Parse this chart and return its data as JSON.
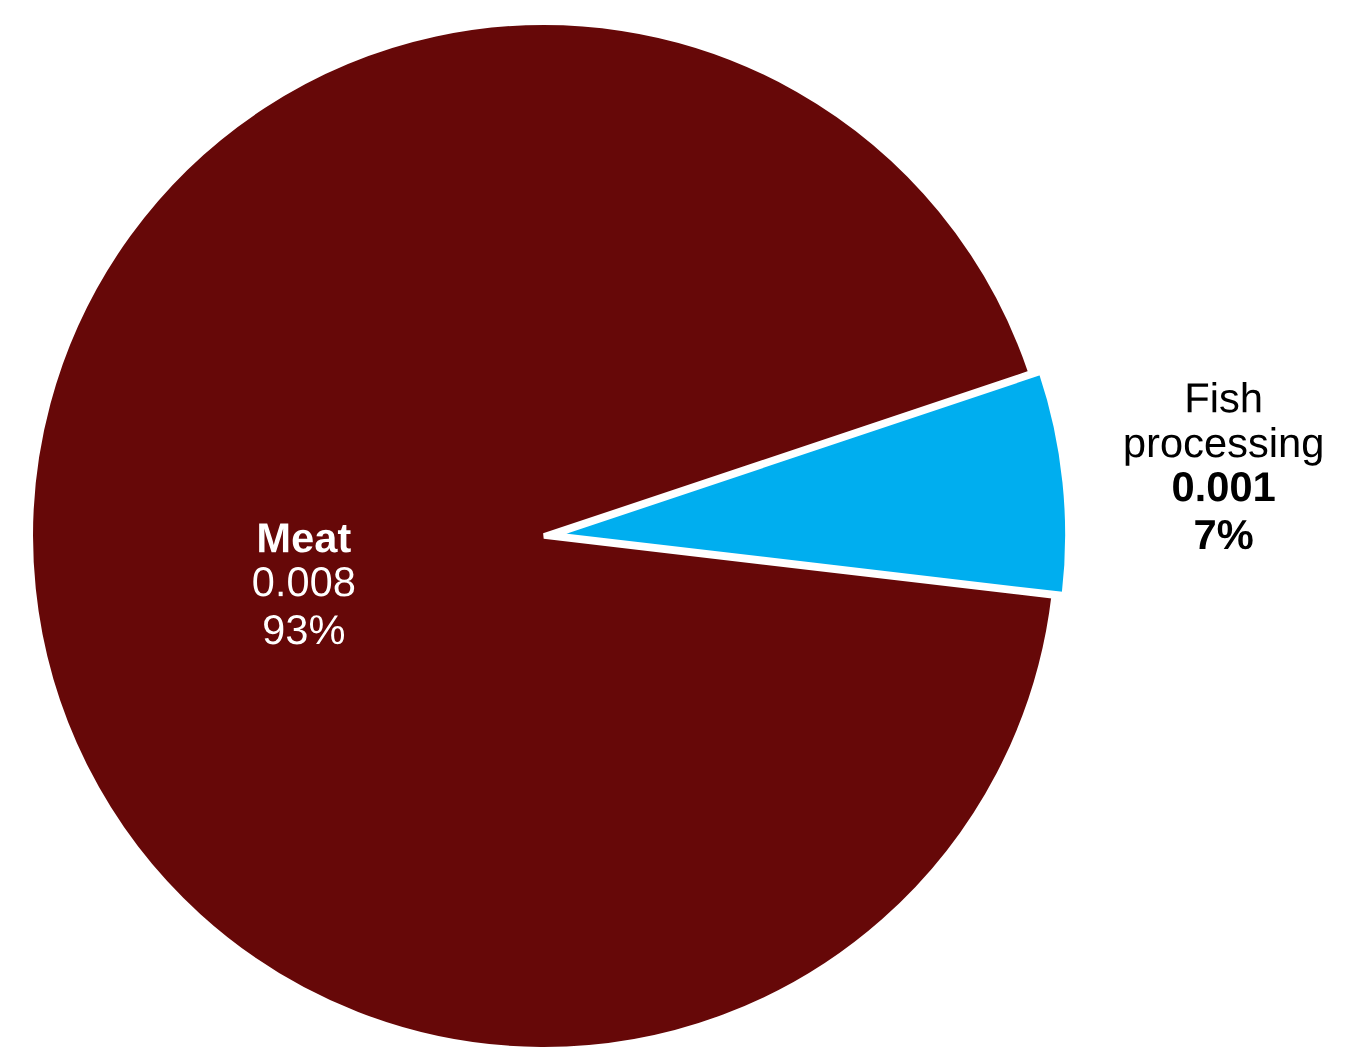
{
  "chart_data": {
    "type": "pie",
    "categories": [
      "Meat",
      "Fish processing"
    ],
    "values": [
      93,
      7
    ],
    "value_labels": [
      "0.008\n93%",
      "0.001\n7%"
    ],
    "colors": [
      "#660808",
      "#00aeef"
    ]
  }
}
